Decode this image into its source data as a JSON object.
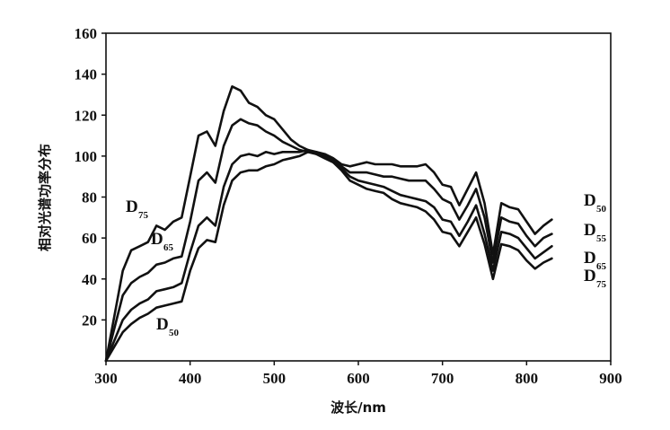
{
  "chart_data": {
    "type": "line",
    "xlabel": "波长/nm",
    "ylabel": "相对光谱功率分布",
    "xlim": [
      300,
      900
    ],
    "ylim": [
      0,
      160
    ],
    "x_ticks": [
      300,
      400,
      500,
      600,
      700,
      800,
      900
    ],
    "y_ticks": [
      20,
      40,
      60,
      80,
      100,
      120,
      140,
      160
    ],
    "grid": false,
    "x": [
      300,
      310,
      320,
      330,
      340,
      350,
      360,
      370,
      380,
      390,
      400,
      410,
      420,
      430,
      440,
      450,
      460,
      470,
      480,
      490,
      500,
      510,
      520,
      530,
      540,
      550,
      560,
      570,
      580,
      590,
      600,
      610,
      620,
      630,
      640,
      650,
      660,
      670,
      680,
      690,
      700,
      710,
      720,
      730,
      740,
      750,
      760,
      770,
      780,
      790,
      800,
      810,
      820,
      830
    ],
    "series": [
      {
        "name": "D75",
        "label_base": "D",
        "label_sub": "75",
        "values": [
          0,
          22,
          44,
          54,
          56,
          58,
          66,
          64,
          68,
          70,
          90,
          110,
          112,
          105,
          122,
          134,
          132,
          126,
          124,
          120,
          118,
          113,
          108,
          105,
          103,
          101,
          99,
          97,
          93,
          88,
          86,
          84,
          83,
          82,
          79,
          77,
          76,
          75,
          73,
          69,
          63,
          62,
          56,
          63,
          70,
          57,
          40,
          57,
          56,
          54,
          49,
          45,
          48,
          50
        ]
      },
      {
        "name": "D65",
        "label_base": "D",
        "label_sub": "65",
        "values": [
          0,
          16,
          32,
          38,
          41,
          43,
          47,
          48,
          50,
          51,
          68,
          88,
          92,
          87,
          105,
          115,
          118,
          116,
          115,
          112,
          110,
          107,
          105,
          103,
          102,
          101,
          99,
          97,
          94,
          90,
          88,
          87,
          86,
          85,
          83,
          81,
          80,
          79,
          78,
          75,
          69,
          68,
          61,
          68,
          76,
          62,
          44,
          63,
          62,
          60,
          55,
          50,
          53,
          56
        ]
      },
      {
        "name": "D55",
        "label_base": "D",
        "label_sub": "55",
        "values": [
          0,
          10,
          20,
          25,
          28,
          30,
          34,
          35,
          36,
          38,
          53,
          66,
          70,
          66,
          85,
          96,
          100,
          101,
          100,
          102,
          101,
          102,
          102,
          102,
          103,
          102,
          100,
          98,
          95,
          92,
          92,
          92,
          91,
          90,
          90,
          89,
          88,
          88,
          88,
          84,
          79,
          77,
          69,
          76,
          84,
          70,
          48,
          70,
          68,
          67,
          61,
          56,
          60,
          62
        ]
      },
      {
        "name": "D50",
        "label_base": "D",
        "label_sub": "50",
        "values": [
          0,
          7,
          14,
          18,
          21,
          23,
          26,
          27,
          28,
          29,
          44,
          55,
          59,
          58,
          76,
          88,
          92,
          93,
          93,
          95,
          96,
          98,
          99,
          100,
          102,
          102,
          101,
          99,
          96,
          95,
          96,
          97,
          96,
          96,
          96,
          95,
          95,
          95,
          96,
          92,
          86,
          85,
          76,
          84,
          92,
          77,
          52,
          77,
          75,
          74,
          68,
          62,
          66,
          69
        ]
      }
    ],
    "legend": "inline labels beside curves"
  }
}
